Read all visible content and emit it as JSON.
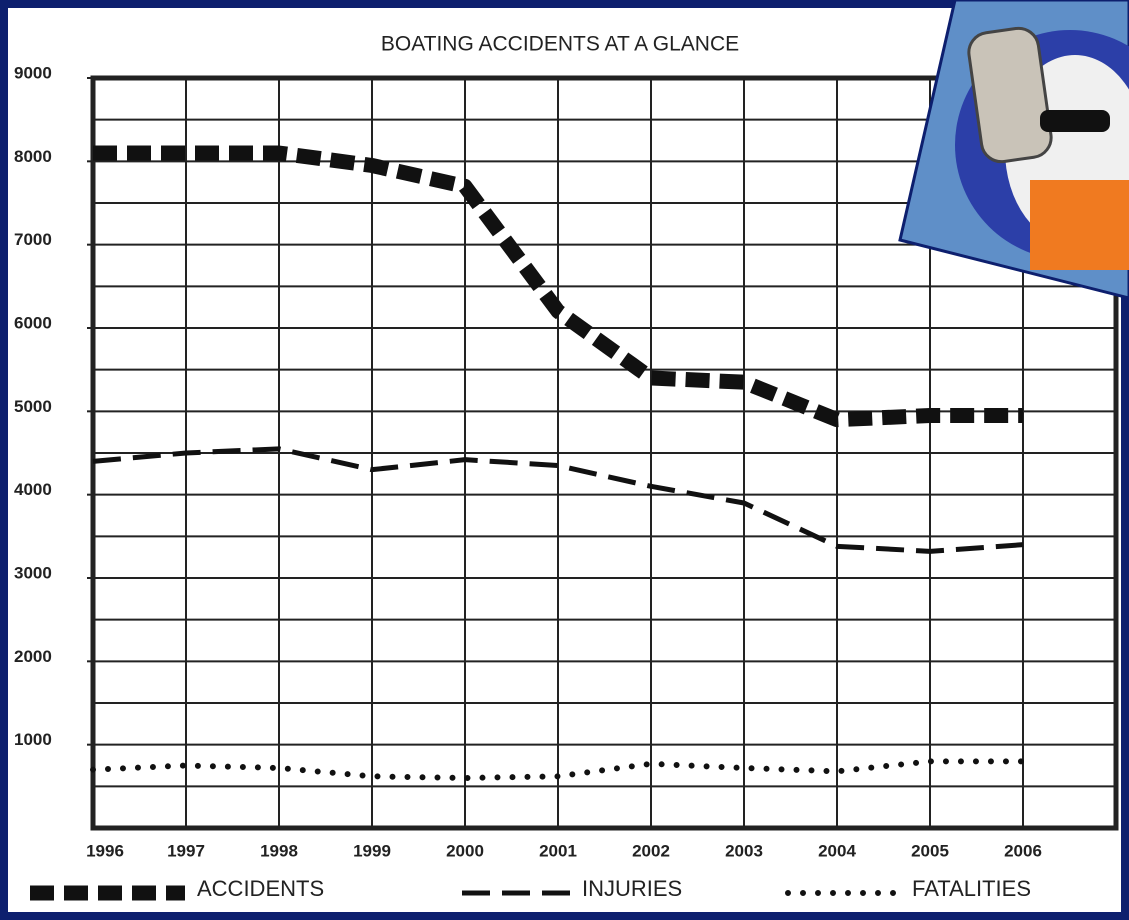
{
  "chart_data": {
    "type": "line",
    "title": "BOATING ACCIDENTS AT A GLANCE",
    "x": [
      1996,
      1997,
      1998,
      1999,
      2000,
      2001,
      2002,
      2003,
      2004,
      2005,
      2006
    ],
    "xlim": [
      1996,
      2007
    ],
    "xticks": [
      1996,
      1997,
      1998,
      1999,
      2000,
      2001,
      2002,
      2003,
      2004,
      2005,
      2006
    ],
    "ylim": [
      0,
      9000
    ],
    "yticks": [
      1000,
      2000,
      3000,
      4000,
      5000,
      6000,
      7000,
      8000,
      9000
    ],
    "minor_yticks": [
      500,
      1500,
      2500,
      3500,
      4500,
      5500,
      6500,
      7500,
      8500
    ],
    "grid": true,
    "series": [
      {
        "name": "ACCIDENTS",
        "color": "#111111",
        "line_style": "heavy-dash",
        "values": [
          8100,
          8100,
          8100,
          7950,
          7700,
          6200,
          5400,
          5350,
          4900,
          4950,
          4950
        ]
      },
      {
        "name": "INJURIES",
        "color": "#111111",
        "line_style": "dash",
        "values": [
          4400,
          4500,
          4550,
          4300,
          4420,
          4350,
          4100,
          3900,
          3380,
          3320,
          3400
        ]
      },
      {
        "name": "FATALITIES",
        "color": "#111111",
        "line_style": "dot",
        "values": [
          700,
          750,
          720,
          620,
          600,
          620,
          770,
          720,
          680,
          800,
          800
        ]
      }
    ]
  }
}
